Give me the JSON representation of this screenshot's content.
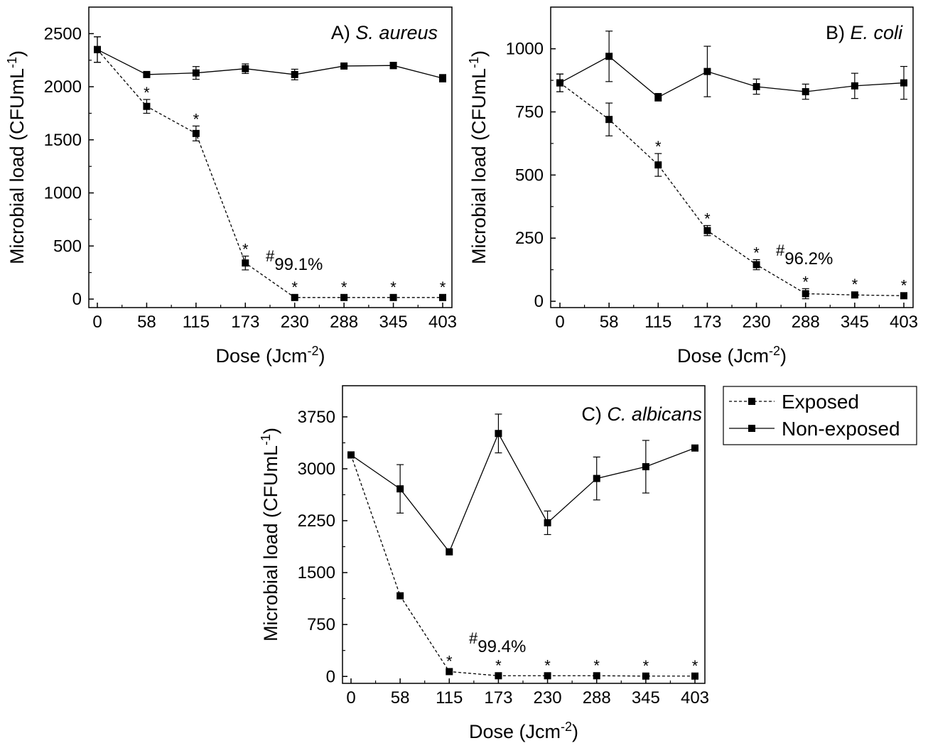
{
  "chart_data": [
    {
      "type": "line",
      "title_prefix": "A) ",
      "title_species": "S. aureus",
      "xlabel_main": "Dose (Jcm",
      "xlabel_sup": "-2",
      "xlabel_end": ")",
      "ylabel_main": "Microbial load (CFUmL",
      "ylabel_sup": "-1",
      "ylabel_end": ")",
      "categories": [
        "0",
        "58",
        "115",
        "173",
        "230",
        "288",
        "345",
        "403"
      ],
      "yticks": [
        0,
        500,
        1000,
        1500,
        2000,
        2500
      ],
      "ylim": [
        -80,
        2750
      ],
      "series": [
        {
          "name": "Exposed",
          "style": "dashed",
          "values": [
            2350,
            1815,
            1560,
            340,
            15,
            15,
            15,
            15
          ],
          "errors": [
            120,
            65,
            70,
            65,
            0,
            0,
            0,
            0
          ],
          "stars": [
            false,
            true,
            true,
            true,
            true,
            true,
            true,
            true
          ]
        },
        {
          "name": "Non-exposed",
          "style": "solid",
          "values": [
            2350,
            2115,
            2130,
            2170,
            2115,
            2195,
            2200,
            2080
          ],
          "errors": [
            120,
            15,
            60,
            45,
            50,
            10,
            30,
            35
          ],
          "stars": [
            false,
            false,
            false,
            false,
            false,
            false,
            false,
            false
          ]
        }
      ],
      "annotation": {
        "hash": "#",
        "text": "99.1%"
      }
    },
    {
      "type": "line",
      "title_prefix": "B) ",
      "title_species": "E. coli",
      "xlabel_main": "Dose (Jcm",
      "xlabel_sup": "-2",
      "xlabel_end": ")",
      "ylabel_main": "Microbial load (CFUmL",
      "ylabel_sup": "-1",
      "ylabel_end": ")",
      "categories": [
        "0",
        "58",
        "115",
        "173",
        "230",
        "288",
        "345",
        "403"
      ],
      "yticks": [
        0,
        250,
        500,
        750,
        1000
      ],
      "ylim": [
        -25,
        1165
      ],
      "series": [
        {
          "name": "Exposed",
          "style": "dashed",
          "values": [
            865,
            720,
            540,
            280,
            145,
            30,
            25,
            22
          ],
          "errors": [
            35,
            65,
            45,
            20,
            20,
            20,
            0,
            0
          ],
          "stars": [
            false,
            false,
            true,
            true,
            true,
            true,
            true,
            true
          ]
        },
        {
          "name": "Non-exposed",
          "style": "solid",
          "values": [
            865,
            970,
            808,
            910,
            850,
            830,
            853,
            865
          ],
          "errors": [
            35,
            100,
            15,
            100,
            30,
            30,
            50,
            65
          ],
          "stars": [
            false,
            false,
            false,
            false,
            false,
            false,
            false,
            false
          ]
        }
      ],
      "annotation": {
        "hash": "#",
        "text": "96.2%"
      }
    },
    {
      "type": "line",
      "title_prefix": "C) ",
      "title_species": "C. albicans",
      "xlabel_main": "Dose (Jcm",
      "xlabel_sup": "-2",
      "xlabel_end": ")",
      "ylabel_main": "Microbial load (CFUmL",
      "ylabel_sup": "-1",
      "ylabel_end": ")",
      "categories": [
        "0",
        "58",
        "115",
        "173",
        "230",
        "288",
        "345",
        "403"
      ],
      "yticks": [
        0,
        750,
        1500,
        2250,
        3000,
        3750
      ],
      "ylim": [
        -100,
        4200
      ],
      "series": [
        {
          "name": "Exposed",
          "style": "dashed",
          "values": [
            3200,
            1165,
            70,
            10,
            10,
            10,
            5,
            5
          ],
          "errors": [
            0,
            0,
            0,
            0,
            0,
            0,
            0,
            0
          ],
          "stars": [
            false,
            false,
            true,
            true,
            true,
            true,
            true,
            true
          ]
        },
        {
          "name": "Non-exposed",
          "style": "solid",
          "values": [
            3200,
            2710,
            1800,
            3510,
            2220,
            2860,
            3030,
            3300
          ],
          "errors": [
            0,
            350,
            0,
            280,
            170,
            310,
            380,
            0
          ],
          "stars": [
            false,
            false,
            false,
            false,
            false,
            false,
            false,
            false
          ]
        }
      ],
      "annotation": {
        "hash": "#",
        "text": "99.4%"
      }
    }
  ],
  "legend": {
    "items": [
      {
        "label": "Exposed",
        "style": "dashed"
      },
      {
        "label": "Non-exposed",
        "style": "solid"
      }
    ]
  }
}
